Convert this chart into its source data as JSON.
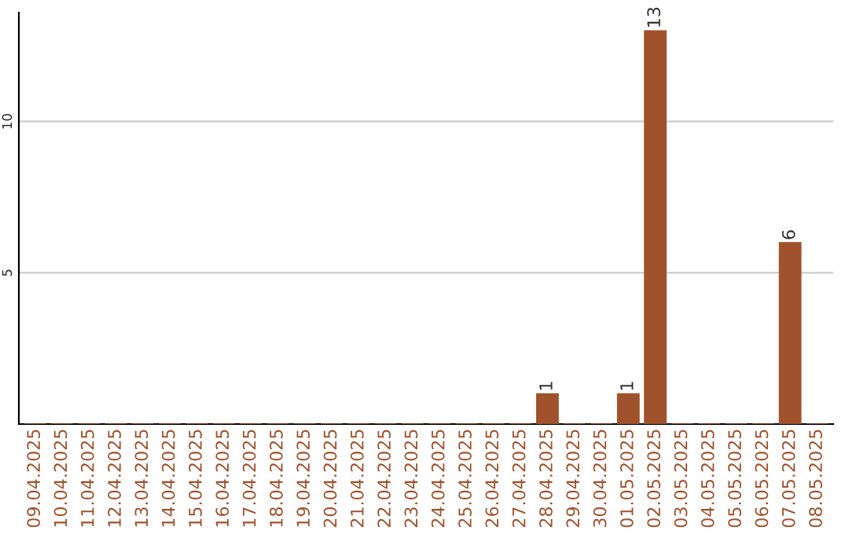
{
  "chart_data": {
    "type": "bar",
    "categories": [
      "09.04.2025",
      "10.04.2025",
      "11.04.2025",
      "12.04.2025",
      "13.04.2025",
      "14.04.2025",
      "15.04.2025",
      "16.04.2025",
      "17.04.2025",
      "18.04.2025",
      "19.04.2025",
      "20.04.2025",
      "21.04.2025",
      "22.04.2025",
      "23.04.2025",
      "24.04.2025",
      "25.04.2025",
      "26.04.2025",
      "27.04.2025",
      "28.04.2025",
      "29.04.2025",
      "30.04.2025",
      "01.05.2025",
      "02.05.2025",
      "03.05.2025",
      "04.05.2025",
      "05.05.2025",
      "06.05.2025",
      "07.05.2025",
      "08.05.2025"
    ],
    "values": [
      0,
      0,
      0,
      0,
      0,
      0,
      0,
      0,
      0,
      0,
      0,
      0,
      0,
      0,
      0,
      0,
      0,
      0,
      0,
      1,
      0,
      0,
      1,
      13,
      0,
      0,
      0,
      0,
      6,
      0
    ],
    "value_labels": [
      null,
      null,
      null,
      null,
      null,
      null,
      null,
      null,
      null,
      null,
      null,
      null,
      null,
      null,
      null,
      null,
      null,
      null,
      null,
      "1",
      null,
      null,
      "1",
      "13",
      null,
      null,
      null,
      null,
      "6",
      null
    ],
    "color": "#a0522d",
    "ylim": [
      0,
      13.6
    ],
    "yticks": [
      5,
      10
    ],
    "grid": "y",
    "legend": false
  }
}
